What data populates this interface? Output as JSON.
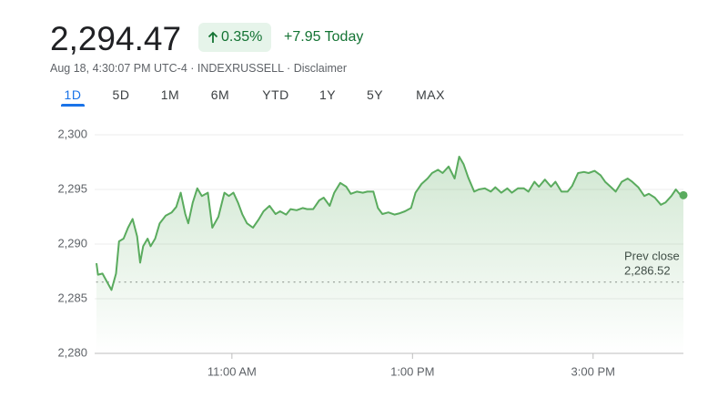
{
  "header": {
    "price": "2,294.47",
    "change_percent": "0.35%",
    "change_today": "+7.95 Today",
    "meta": "Aug 18, 4:30:07 PM UTC-4 · INDEXRUSSELL · Disclaimer"
  },
  "tabs": {
    "items": [
      "1D",
      "5D",
      "1M",
      "6M",
      "YTD",
      "1Y",
      "5Y",
      "MAX"
    ],
    "selected": 0
  },
  "chart_data": {
    "type": "line",
    "color": "#5aab5e",
    "x": [
      570,
      571,
      574,
      576,
      580,
      583,
      585,
      588,
      591,
      594,
      597,
      599,
      601,
      604,
      606,
      609,
      612,
      616,
      620,
      623,
      626,
      629,
      631,
      634,
      637,
      640,
      644,
      647,
      651,
      655,
      658,
      661,
      664,
      667,
      670,
      674,
      678,
      681,
      685,
      689,
      692,
      696,
      699,
      703,
      707,
      710,
      714,
      718,
      721,
      725,
      728,
      732,
      736,
      739,
      743,
      747,
      750,
      754,
      757,
      760,
      764,
      768,
      771,
      775,
      779,
      782,
      786,
      790,
      793,
      797,
      800,
      804,
      808,
      811,
      814,
      817,
      821,
      824,
      828,
      832,
      835,
      839,
      843,
      846,
      850,
      854,
      857,
      861,
      864,
      868,
      872,
      875,
      879,
      883,
      886,
      890,
      894,
      897,
      901,
      905,
      908,
      912,
      915,
      919,
      923,
      926,
      930,
      934,
      937,
      941,
      945,
      948,
      952,
      955,
      958,
      960
    ],
    "values": [
      2288.25,
      2287.2,
      2287.3,
      2286.8,
      2285.8,
      2287.3,
      2290.25,
      2290.5,
      2291.5,
      2292.3,
      2290.7,
      2288.3,
      2289.8,
      2290.5,
      2289.8,
      2290.5,
      2291.9,
      2292.6,
      2292.9,
      2293.4,
      2294.7,
      2292.75,
      2291.9,
      2293.8,
      2295.1,
      2294.4,
      2294.7,
      2291.5,
      2292.5,
      2294.7,
      2294.4,
      2294.7,
      2293.8,
      2292.7,
      2291.9,
      2291.5,
      2292.3,
      2293,
      2293.5,
      2292.75,
      2293,
      2292.7,
      2293.2,
      2293.1,
      2293.3,
      2293.2,
      2293.2,
      2294,
      2294.25,
      2293.5,
      2294.7,
      2295.6,
      2295.25,
      2294.6,
      2294.8,
      2294.7,
      2294.8,
      2294.8,
      2293.3,
      2292.75,
      2292.9,
      2292.7,
      2292.8,
      2293,
      2293.3,
      2294.7,
      2295.5,
      2296,
      2296.5,
      2296.8,
      2296.5,
      2297.1,
      2296,
      2298,
      2297.3,
      2296.1,
      2294.8,
      2295,
      2295.1,
      2294.8,
      2295.2,
      2294.7,
      2295.1,
      2294.7,
      2295.1,
      2295.1,
      2294.8,
      2295.7,
      2295.25,
      2295.9,
      2295.25,
      2295.7,
      2294.8,
      2294.8,
      2295.3,
      2296.5,
      2296.6,
      2296.5,
      2296.7,
      2296.3,
      2295.7,
      2295.2,
      2294.8,
      2295.7,
      2296,
      2295.7,
      2295.2,
      2294.4,
      2294.6,
      2294.25,
      2293.6,
      2293.8,
      2294.4,
      2295,
      2294.5,
      2294.47
    ],
    "xlim": [
      570,
      960
    ],
    "ylim": [
      2280,
      2300
    ],
    "xticks": [
      {
        "value": 660,
        "label": "11:00 AM"
      },
      {
        "value": 780,
        "label": "1:00 PM"
      },
      {
        "value": 900,
        "label": "3:00 PM"
      }
    ],
    "yticks": [
      {
        "value": 2280,
        "label": "2,280"
      },
      {
        "value": 2285,
        "label": "2,285"
      },
      {
        "value": 2290,
        "label": "2,290"
      },
      {
        "value": 2295,
        "label": "2,295"
      },
      {
        "value": 2300,
        "label": "2,300"
      }
    ],
    "grid": true,
    "annotation": {
      "text": "Prev close",
      "value": 2286.52,
      "label": "2,286.52"
    }
  }
}
